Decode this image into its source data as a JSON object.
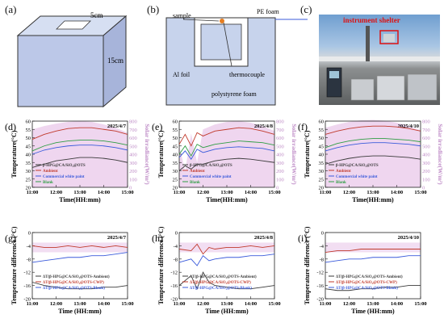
{
  "panels_top": {
    "a": {
      "label": "(a)",
      "dim_top": "5cm",
      "dim_side": "15cm"
    },
    "b": {
      "label": "(b)",
      "sample": "sample",
      "pe_foam": "PE foam",
      "al_foil": "Al foil",
      "thermocouple": "thermocouple",
      "polystyrene": "polystyrene foam"
    },
    "c": {
      "label": "(c)",
      "shelter": "instrument shelter"
    }
  },
  "colors": {
    "sample": "#3a3a3a",
    "ambient": "#c0392b",
    "cwp": "#3b5bdb",
    "blank": "#2f9e44",
    "irradiance_fill": "#e9c8ea",
    "ylabel_right": "#c08ec8"
  },
  "chart_data": [
    {
      "type": "line",
      "panel": "(d)",
      "date": "2025/4/7",
      "xlabel": "Time(HH:mm)",
      "ylabel": "Temperature(°C)",
      "y2label": "Solar irradiance(W/m²)",
      "xticks": [
        "11:00",
        "12:00",
        "13:00",
        "14:00",
        "15:00"
      ],
      "ylim": [
        20,
        60
      ],
      "yticks": [
        20,
        25,
        30,
        35,
        40,
        45,
        50,
        55,
        60
      ],
      "y2lim": [
        0,
        800
      ],
      "y2ticks": [
        0,
        100,
        200,
        300,
        400,
        500,
        600,
        700,
        800
      ],
      "x": [
        0,
        0.5,
        1,
        1.5,
        2,
        2.5,
        3,
        3.5,
        4
      ],
      "irradiance": [
        700,
        740,
        770,
        790,
        800,
        790,
        760,
        720,
        660
      ],
      "series": [
        {
          "name": "β-HPG@CA/SiO₂@OTS",
          "key": "sample",
          "values": [
            32,
            34,
            36,
            37,
            38,
            38,
            37.5,
            36.5,
            35
          ]
        },
        {
          "name": "Ambient",
          "key": "ambient",
          "values": [
            49,
            52,
            54,
            55.5,
            56,
            56,
            55,
            54,
            52
          ]
        },
        {
          "name": "Commercial white paint",
          "key": "cwp",
          "values": [
            40,
            42.5,
            44,
            45,
            45.5,
            45.5,
            45,
            44,
            42.5
          ]
        },
        {
          "name": "Blank",
          "key": "blank",
          "values": [
            42,
            45,
            47,
            48,
            48.5,
            48.5,
            48,
            47,
            45.5
          ]
        }
      ]
    },
    {
      "type": "line",
      "panel": "(e)",
      "date": "2025/4/8",
      "xlabel": "Time(HH:mm)",
      "ylabel": "Temperature(°C)",
      "y2label": "Solar irradiance(W/m²)",
      "xticks": [
        "11:00",
        "12:00",
        "13:00",
        "14:00",
        "15:00"
      ],
      "ylim": [
        20,
        60
      ],
      "yticks": [
        20,
        25,
        30,
        35,
        40,
        45,
        50,
        55,
        60
      ],
      "y2lim": [
        0,
        800
      ],
      "y2ticks": [
        0,
        100,
        200,
        300,
        400,
        500,
        600,
        700,
        800
      ],
      "x": [
        0,
        0.25,
        0.5,
        0.75,
        1,
        1.5,
        2,
        2.5,
        3,
        3.5,
        4
      ],
      "irradiance": [
        500,
        200,
        650,
        300,
        700,
        760,
        790,
        800,
        780,
        740,
        680
      ],
      "series": [
        {
          "name": "β-HPG@CA/SiO₂@OTS",
          "key": "sample",
          "values": [
            30,
            33,
            31,
            34,
            34,
            36,
            37,
            37.5,
            37,
            36,
            35
          ]
        },
        {
          "name": "Ambient",
          "key": "ambient",
          "values": [
            46,
            52,
            45,
            53,
            51,
            54,
            55,
            56,
            55.5,
            54,
            52
          ]
        },
        {
          "name": "Commercial white paint",
          "key": "cwp",
          "values": [
            38,
            42,
            37,
            43,
            41,
            43,
            44,
            44.5,
            44,
            43.5,
            42
          ]
        },
        {
          "name": "Blank",
          "key": "blank",
          "values": [
            40,
            45,
            39,
            46,
            44,
            46,
            47,
            48,
            47.5,
            47,
            45.5
          ]
        }
      ]
    },
    {
      "type": "line",
      "panel": "(f)",
      "date": "2025/4/10",
      "xlabel": "Time(HH:mm)",
      "ylabel": "Temperature(°C)",
      "y2label": "Solar irradiance(W/m²)",
      "xticks": [
        "11:00",
        "12:00",
        "13:00",
        "14:00",
        "15:00"
      ],
      "ylim": [
        20,
        60
      ],
      "yticks": [
        20,
        25,
        30,
        35,
        40,
        45,
        50,
        55,
        60
      ],
      "y2lim": [
        0,
        800
      ],
      "y2ticks": [
        0,
        100,
        200,
        300,
        400,
        500,
        600,
        700,
        800
      ],
      "x": [
        0,
        0.5,
        1,
        1.5,
        2,
        2.5,
        3,
        3.5,
        4
      ],
      "irradiance": [
        720,
        760,
        790,
        810,
        815,
        805,
        780,
        740,
        690
      ],
      "series": [
        {
          "name": "β-HPG@CA/SiO₂@OTS",
          "key": "sample",
          "values": [
            34,
            36,
            37.5,
            38.5,
            39,
            39,
            38.5,
            38,
            37
          ]
        },
        {
          "name": "Ambient",
          "key": "ambient",
          "values": [
            52,
            54,
            55.5,
            56.5,
            57,
            57,
            56.5,
            55.5,
            54
          ]
        },
        {
          "name": "Commercial white paint",
          "key": "cwp",
          "values": [
            42,
            44,
            45.5,
            46.5,
            47,
            47,
            46.5,
            46,
            45
          ]
        },
        {
          "name": "Blank",
          "key": "blank",
          "values": [
            44,
            46.5,
            48,
            49,
            49.5,
            49.5,
            49,
            48.5,
            47.5
          ]
        }
      ]
    },
    {
      "type": "line",
      "panel": "(g)",
      "date": "2025/4/7",
      "xlabel": "Time (HH:mm)",
      "ylabel": "Temperature difference (°C)",
      "xticks": [
        "11:00",
        "12:00",
        "13:00",
        "14:00",
        "15:00"
      ],
      "ylim": [
        -20,
        0
      ],
      "yticks": [
        -20,
        -16,
        -12,
        -8,
        -4,
        0
      ],
      "x": [
        0,
        0.5,
        1,
        1.5,
        2,
        2.5,
        3,
        3.5,
        4
      ],
      "series": [
        {
          "name": "ΔT(β-HPG@CA/SiO₂@OTS-Ambient)",
          "key": "sample",
          "values": [
            -15,
            -16,
            -16.5,
            -17,
            -17,
            -17,
            -16.5,
            -16.5,
            -16
          ]
        },
        {
          "name": "ΔT(β-HPG@CA/SiO₂@OTS-CWP)",
          "key": "ambient",
          "values": [
            -4,
            -4.5,
            -4.5,
            -4,
            -4.5,
            -4,
            -4.5,
            -4,
            -4.5
          ]
        },
        {
          "name": "ΔT(β-HPG@CA/SiO₂@OTS-Blank)",
          "key": "cwp",
          "values": [
            -9,
            -8.5,
            -8,
            -7.5,
            -7.5,
            -7,
            -7,
            -6.5,
            -6
          ]
        }
      ]
    },
    {
      "type": "line",
      "panel": "(h)",
      "date": "2025/4/8",
      "xlabel": "Time (HH:mm)",
      "ylabel": "Temperature difference (°C)",
      "xticks": [
        "11:00",
        "12:00",
        "13:00",
        "14:00",
        "15:00"
      ],
      "ylim": [
        -20,
        0
      ],
      "yticks": [
        -20,
        -16,
        -12,
        -8,
        -4,
        0
      ],
      "x": [
        0,
        0.5,
        0.75,
        1,
        1.25,
        1.5,
        2,
        2.5,
        3,
        3.5,
        4
      ],
      "series": [
        {
          "name": "ΔT(β-HPG@CA/SiO₂@OTS-Ambient)",
          "key": "sample",
          "values": [
            -16,
            -13,
            -17,
            -12,
            -15,
            -16,
            -16.5,
            -17,
            -17,
            -16.5,
            -16
          ]
        },
        {
          "name": "ΔT(β-HPG@CA/SiO₂@OTS-CWP)",
          "key": "ambient",
          "values": [
            -5,
            -5.5,
            -3.5,
            -6.5,
            -4.5,
            -5,
            -4.5,
            -4.5,
            -4,
            -4.5,
            -4
          ]
        },
        {
          "name": "ΔT(β-HPG@CA/SiO₂@OTS-Blank)",
          "key": "cwp",
          "values": [
            -9,
            -8,
            -10,
            -7,
            -8.5,
            -8,
            -7.5,
            -7.5,
            -7,
            -7,
            -6.5
          ]
        }
      ]
    },
    {
      "type": "line",
      "panel": "(i)",
      "date": "2025/4/10",
      "xlabel": "Time (HH:mm)",
      "ylabel": "Temperature difference (°C)",
      "xticks": [
        "11:00",
        "12:00",
        "13:00",
        "14:00",
        "15:00"
      ],
      "ylim": [
        -20,
        0
      ],
      "yticks": [
        -20,
        -16,
        -12,
        -8,
        -4,
        0
      ],
      "x": [
        0,
        0.5,
        1,
        1.5,
        2,
        2.5,
        3,
        3.5,
        4
      ],
      "series": [
        {
          "name": "ΔT(β-HPG@CA/SiO₂@OTS-Ambient)",
          "key": "sample",
          "values": [
            -17,
            -17.5,
            -17.5,
            -17,
            -17,
            -16.5,
            -16.5,
            -16,
            -16
          ]
        },
        {
          "name": "ΔT(β-HPG@CA/SiO₂@OTS-CWP)",
          "key": "ambient",
          "values": [
            -6,
            -5.5,
            -5.5,
            -5,
            -5,
            -5,
            -5,
            -5,
            -5
          ]
        },
        {
          "name": "ΔT(β-HPG@CA/SiO₂@OTS-Blank)",
          "key": "cwp",
          "values": [
            -9,
            -8.5,
            -8,
            -8,
            -7.5,
            -7.5,
            -7.5,
            -7,
            -7
          ]
        }
      ]
    }
  ]
}
